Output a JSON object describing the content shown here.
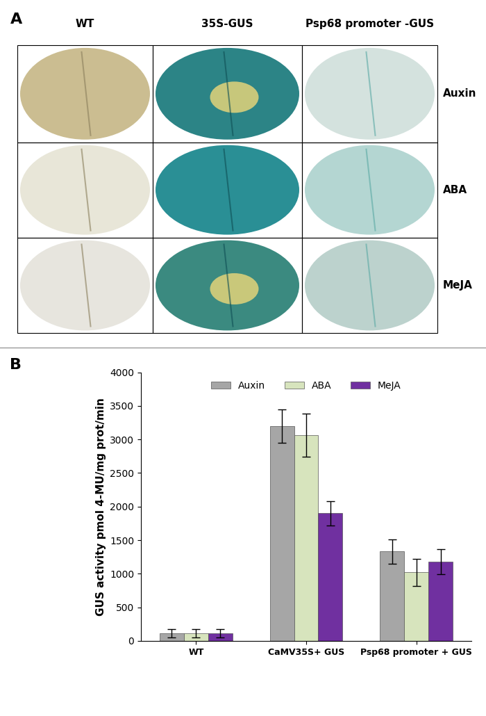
{
  "panel_a": {
    "label": "A",
    "columns": [
      "WT",
      "35S-GUS",
      "Psp68 promoter -GUS"
    ],
    "rows": [
      "Auxin",
      "ABA",
      "MeJA"
    ]
  },
  "chart_data": {
    "type": "bar",
    "panel_label": "B",
    "categories": [
      "WT",
      "CaMV35S+ GUS",
      "Psp68 promoter + GUS"
    ],
    "y_label": "GUS activity pmol 4-MU/mg prot/min",
    "series": [
      {
        "name": "Auxin",
        "color": "#a6a6a6",
        "values": [
          110,
          3200,
          1330
        ],
        "errors": [
          60,
          250,
          180
        ]
      },
      {
        "name": "ABA",
        "color": "#d7e4bd",
        "values": [
          115,
          3060,
          1020
        ],
        "errors": [
          60,
          320,
          200
        ]
      },
      {
        "name": "MeJA",
        "color": "#7030a0",
        "values": [
          110,
          1900,
          1180
        ],
        "errors": [
          60,
          180,
          190
        ]
      }
    ],
    "ylim": [
      0,
      4000
    ],
    "yticks": [
      0,
      500,
      1000,
      1500,
      2000,
      2500,
      3000,
      3500,
      4000
    ],
    "legend": "upper center",
    "grid": false
  }
}
